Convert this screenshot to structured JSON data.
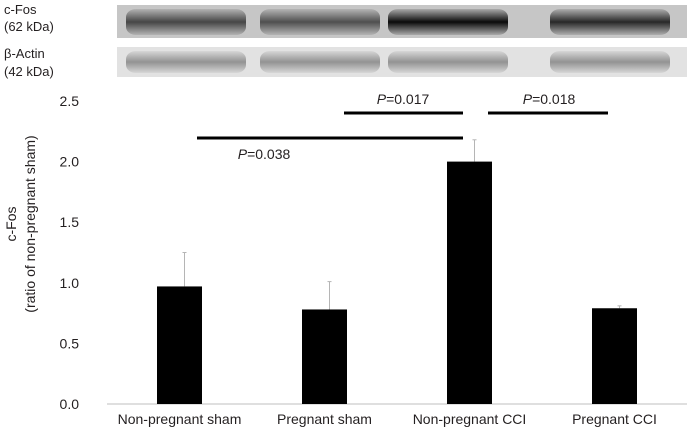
{
  "blot": {
    "rows": [
      {
        "name": "c-Fos",
        "size": "(62 kDa)",
        "band_intensity": [
          0.65,
          0.6,
          0.95,
          0.8
        ]
      },
      {
        "name": "β-Actin",
        "size": "(42 kDa)",
        "band_intensity": [
          0.35,
          0.35,
          0.35,
          0.35
        ]
      }
    ]
  },
  "chart_data": {
    "type": "bar",
    "categories": [
      "Non-pregnant sham",
      "Pregnant sham",
      "Non-pregnant CCI",
      "Pregnant CCI"
    ],
    "values": [
      0.97,
      0.78,
      2.0,
      0.79
    ],
    "error": [
      0.28,
      0.23,
      0.18,
      0.02
    ],
    "ylabel": "c-Fos",
    "ylabel2": "(ratio of non-pregnant sham)",
    "ylim": [
      0,
      2.5
    ],
    "yticks": [
      "0.0",
      "0.5",
      "1.0",
      "1.5",
      "2.0",
      "2.5"
    ],
    "ytick_values": [
      0,
      0.5,
      1.0,
      1.5,
      2.0,
      2.5
    ],
    "bar_color": "#000000",
    "grid": false,
    "significance": [
      {
        "from": 0,
        "to": 2,
        "p_italic": "P",
        "p_value": "=0.038",
        "label_side": "below"
      },
      {
        "from": 1,
        "to": 2,
        "p_italic": "P",
        "p_value": "=0.017",
        "label_side": "above"
      },
      {
        "from": 2,
        "to": 3,
        "p_italic": "P",
        "p_value": "=0.018",
        "label_side": "above"
      }
    ]
  }
}
